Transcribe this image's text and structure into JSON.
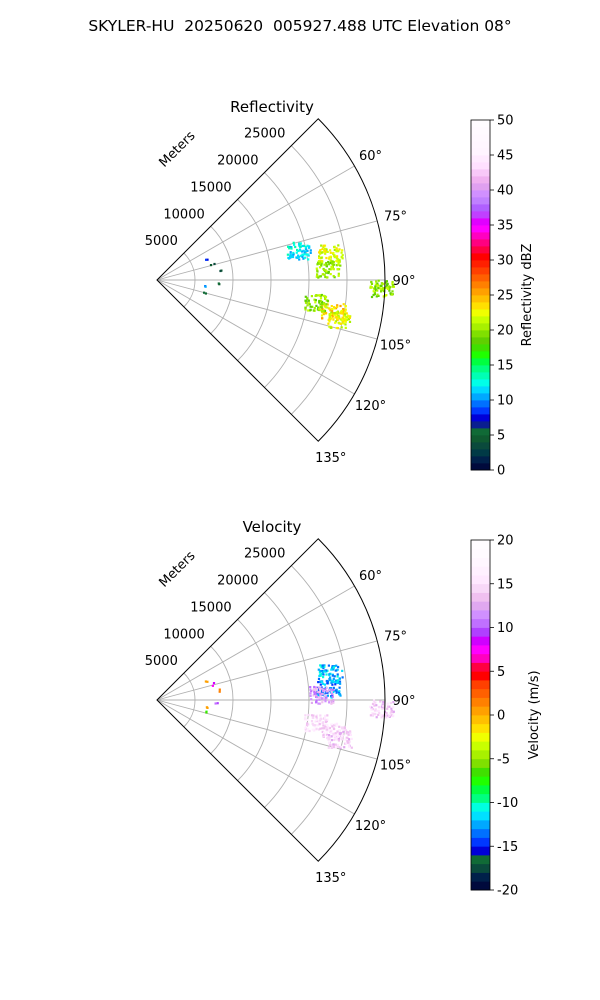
{
  "figure": {
    "title": "SKYLER-HU  20250620  005927.488 UTC Elevation 08°"
  },
  "chart_data": [
    {
      "type": "heatmap",
      "title": "Reflectivity",
      "radial_label": "Meters",
      "radial_ticks": [
        5000,
        10000,
        15000,
        20000,
        25000
      ],
      "radial_range": [
        0,
        30000
      ],
      "angular_range_deg": [
        45,
        135
      ],
      "angular_ticks": [
        "60°",
        "75°",
        "90°",
        "105°",
        "120°",
        "135°"
      ],
      "grid": true,
      "colorbar": {
        "label": "Reflectivity dBZ",
        "min": 0,
        "max": 50,
        "ticks": [
          0,
          5,
          10,
          15,
          20,
          25,
          30,
          35,
          40,
          45,
          50
        ],
        "colors": [
          "#000a3c",
          "#00204a",
          "#003a46",
          "#0a4a3c",
          "#0f5a30",
          "#106a36",
          "#0a1e90",
          "#0000d8",
          "#0038ff",
          "#0070ff",
          "#00a8ff",
          "#00d8ff",
          "#00ffe8",
          "#00ffb4",
          "#00ff80",
          "#00ff40",
          "#20ff00",
          "#40e000",
          "#60d000",
          "#80e000",
          "#a8f000",
          "#c8ff00",
          "#f0ff00",
          "#ffe000",
          "#ffc000",
          "#ffa000",
          "#ff8000",
          "#ff6000",
          "#ff4000",
          "#ff2000",
          "#ff0000",
          "#ff0040",
          "#ff0080",
          "#ff00c0",
          "#ff00ff",
          "#e000ff",
          "#c040ff",
          "#b060ff",
          "#c080ff",
          "#d090ff",
          "#e0a0f0",
          "#f0b0f0",
          "#f8c8f8",
          "#ffe0ff",
          "#ffeaff",
          "#fff4ff",
          "#fff6ff",
          "#fff8ff",
          "#fffaff",
          "#fffcff"
        ]
      },
      "echoes": [
        {
          "angle_deg": 81,
          "range_m": 23000,
          "value": 22
        },
        {
          "angle_deg": 86,
          "range_m": 22500,
          "value": 20
        },
        {
          "angle_deg": 78,
          "range_m": 19000,
          "value": 12
        },
        {
          "angle_deg": 100,
          "range_m": 23500,
          "value": 24
        },
        {
          "angle_deg": 102,
          "range_m": 24500,
          "value": 22
        },
        {
          "angle_deg": 98,
          "range_m": 21000,
          "value": 20
        },
        {
          "angle_deg": 92,
          "range_m": 29500,
          "value": 20
        },
        {
          "angle_deg": 67,
          "range_m": 6800,
          "value": 8
        },
        {
          "angle_deg": 73,
          "range_m": 7500,
          "value": 4
        },
        {
          "angle_deg": 80,
          "range_m": 8200,
          "value": 4
        },
        {
          "angle_deg": 92,
          "range_m": 7800,
          "value": 5
        },
        {
          "angle_deg": 97,
          "range_m": 6500,
          "value": 10
        },
        {
          "angle_deg": 104,
          "range_m": 6500,
          "value": 5
        }
      ]
    },
    {
      "type": "heatmap",
      "title": "Velocity",
      "radial_label": "Meters",
      "radial_ticks": [
        5000,
        10000,
        15000,
        20000,
        25000
      ],
      "radial_range": [
        0,
        30000
      ],
      "angular_range_deg": [
        45,
        135
      ],
      "angular_ticks": [
        "60°",
        "75°",
        "90°",
        "105°",
        "120°",
        "135°"
      ],
      "grid": true,
      "colorbar": {
        "label": "Velocity (m/s)",
        "min": -20,
        "max": 20,
        "ticks": [
          -20,
          -15,
          -10,
          -5,
          0,
          5,
          10,
          15,
          20
        ],
        "colors": [
          "#000a3c",
          "#00204a",
          "#0a4a3c",
          "#106a36",
          "#0000d8",
          "#0038ff",
          "#0070ff",
          "#00a8ff",
          "#00e0ff",
          "#00ffe0",
          "#00ff80",
          "#00ff40",
          "#20ff00",
          "#40e000",
          "#80e000",
          "#a8f000",
          "#c8ff00",
          "#f0ff00",
          "#ffe000",
          "#ffc000",
          "#ffa000",
          "#ff8000",
          "#ff6000",
          "#ff4000",
          "#ff0000",
          "#ff0040",
          "#ff00c0",
          "#ff00ff",
          "#d000ff",
          "#b040ff",
          "#c070ff",
          "#d090ff",
          "#e0a8f0",
          "#f0c0f0",
          "#f8d8f8",
          "#ffe8ff",
          "#fff0ff",
          "#fff6ff",
          "#fffaff",
          "#fffcff"
        ]
      },
      "echoes": [
        {
          "angle_deg": 81,
          "range_m": 23000,
          "value": -12
        },
        {
          "angle_deg": 86,
          "range_m": 22500,
          "value": -13
        },
        {
          "angle_deg": 88,
          "range_m": 21500,
          "value": 12
        },
        {
          "angle_deg": 100,
          "range_m": 23500,
          "value": 15
        },
        {
          "angle_deg": 102,
          "range_m": 24500,
          "value": 14
        },
        {
          "angle_deg": 98,
          "range_m": 21000,
          "value": 15
        },
        {
          "angle_deg": 92,
          "range_m": 29500,
          "value": 14
        },
        {
          "angle_deg": 67,
          "range_m": 6800,
          "value": 1
        },
        {
          "angle_deg": 73,
          "range_m": 7500,
          "value": 8
        },
        {
          "angle_deg": 80,
          "range_m": 8200,
          "value": 2
        },
        {
          "angle_deg": 92,
          "range_m": 7800,
          "value": 10
        },
        {
          "angle_deg": 97,
          "range_m": 6500,
          "value": 1
        },
        {
          "angle_deg": 104,
          "range_m": 6500,
          "value": -7
        }
      ]
    }
  ]
}
